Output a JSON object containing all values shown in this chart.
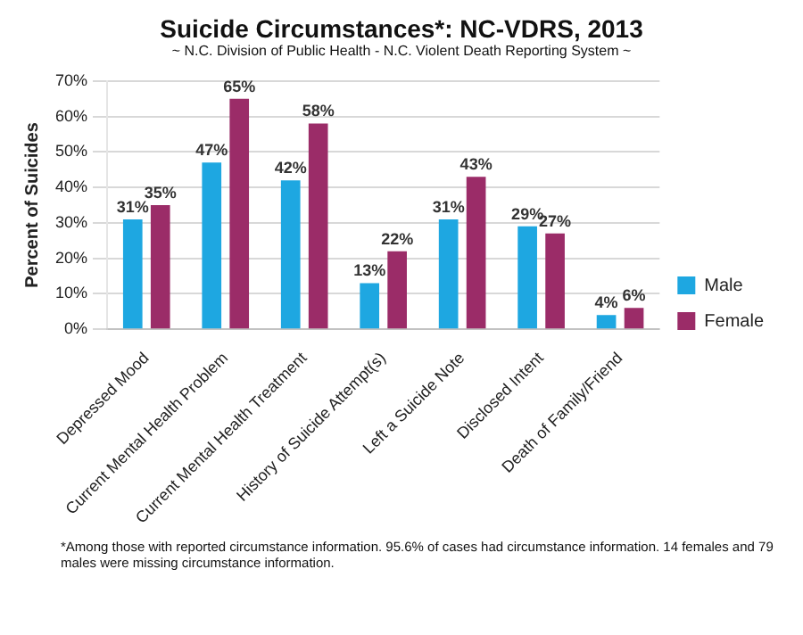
{
  "chart_data": {
    "type": "bar",
    "title": "Suicide Circumstances*: NC-VDRS, 2013",
    "subtitle": "~ N.C. Division of Public Health - N.C. Violent Death Reporting System ~",
    "ylabel": "Percent of Suicides",
    "categories": [
      "Depressed Mood",
      "Current Mental Health Problem",
      "Current Mental Health Treatment",
      "History of Suicide Attempt(s)",
      "Left a Suicide Note",
      "Disclosed Intent",
      "Death of Family/Friend"
    ],
    "series": [
      {
        "name": "Male",
        "color": "#1ea7e1",
        "values": [
          31,
          47,
          42,
          13,
          31,
          29,
          4
        ],
        "value_labels": [
          "31%",
          "47%",
          "42%",
          "13%",
          "31%",
          "29%",
          "4%"
        ]
      },
      {
        "name": "Female",
        "color": "#9b2c68",
        "values": [
          35,
          65,
          58,
          22,
          43,
          27,
          6
        ],
        "value_labels": [
          "35%",
          "65%",
          "58%",
          "22%",
          "43%",
          "27%",
          "6%"
        ]
      }
    ],
    "ylim": [
      0,
      70
    ],
    "yticks": [
      {
        "value": 0,
        "label": "0%"
      },
      {
        "value": 10,
        "label": "10%"
      },
      {
        "value": 20,
        "label": "20%"
      },
      {
        "value": 30,
        "label": "30%"
      },
      {
        "value": 40,
        "label": "40%"
      },
      {
        "value": 50,
        "label": "50%"
      },
      {
        "value": 60,
        "label": "60%"
      },
      {
        "value": 70,
        "label": "70%"
      }
    ],
    "grid": "y",
    "legend": "right",
    "annotations": [
      "*Among those with reported circumstance information. 95.6% of cases had circumstance information. 14 females and 79  males were missing circumstance information."
    ]
  }
}
